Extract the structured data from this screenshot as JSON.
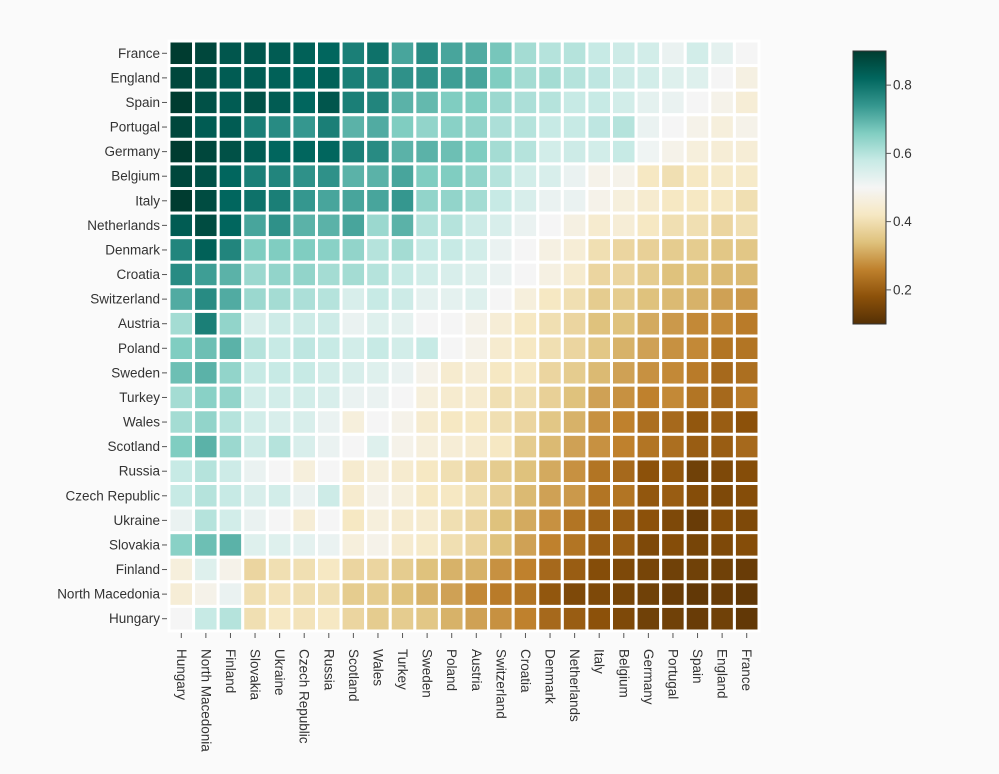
{
  "chart_data": {
    "type": "heatmap",
    "title": "",
    "xlabel": "",
    "ylabel": "",
    "rows": [
      "France",
      "England",
      "Spain",
      "Portugal",
      "Germany",
      "Belgium",
      "Italy",
      "Netherlands",
      "Denmark",
      "Croatia",
      "Switzerland",
      "Austria",
      "Poland",
      "Sweden",
      "Turkey",
      "Wales",
      "Scotland",
      "Russia",
      "Czech Republic",
      "Ukraine",
      "Slovakia",
      "Finland",
      "North Macedonia",
      "Hungary"
    ],
    "columns": [
      "Hungary",
      "North Macedonia",
      "Finland",
      "Slovakia",
      "Ukraine",
      "Czech Republic",
      "Russia",
      "Scotland",
      "Wales",
      "Turkey",
      "Sweden",
      "Poland",
      "Austria",
      "Switzerland",
      "Croatia",
      "Denmark",
      "Netherlands",
      "Italy",
      "Belgium",
      "Germany",
      "Portugal",
      "Spain",
      "England",
      "France"
    ],
    "values": [
      [
        0.9,
        0.88,
        0.85,
        0.85,
        0.84,
        0.83,
        0.82,
        0.78,
        0.8,
        0.72,
        0.76,
        0.72,
        0.71,
        0.67,
        0.62,
        0.6,
        0.6,
        0.58,
        0.57,
        0.56,
        0.52,
        0.56,
        0.53,
        0.5
      ],
      [
        0.88,
        0.86,
        0.84,
        0.84,
        0.83,
        0.82,
        0.83,
        0.78,
        0.77,
        0.75,
        0.75,
        0.73,
        0.72,
        0.66,
        0.62,
        0.62,
        0.6,
        0.59,
        0.57,
        0.56,
        0.54,
        0.54,
        0.5,
        0.47
      ],
      [
        0.9,
        0.86,
        0.84,
        0.86,
        0.84,
        0.82,
        0.85,
        0.78,
        0.77,
        0.7,
        0.69,
        0.66,
        0.66,
        0.63,
        0.61,
        0.6,
        0.58,
        0.58,
        0.56,
        0.53,
        0.52,
        0.5,
        0.48,
        0.45
      ],
      [
        0.88,
        0.84,
        0.84,
        0.78,
        0.76,
        0.74,
        0.78,
        0.7,
        0.71,
        0.66,
        0.64,
        0.65,
        0.64,
        0.61,
        0.6,
        0.58,
        0.58,
        0.59,
        0.6,
        0.52,
        0.5,
        0.48,
        0.46,
        0.48
      ],
      [
        0.91,
        0.88,
        0.86,
        0.84,
        0.82,
        0.82,
        0.82,
        0.78,
        0.76,
        0.7,
        0.7,
        0.68,
        0.66,
        0.62,
        0.6,
        0.56,
        0.57,
        0.56,
        0.58,
        0.51,
        0.48,
        0.46,
        0.45,
        0.45
      ],
      [
        0.88,
        0.86,
        0.82,
        0.78,
        0.77,
        0.75,
        0.75,
        0.7,
        0.7,
        0.72,
        0.66,
        0.66,
        0.64,
        0.6,
        0.56,
        0.55,
        0.52,
        0.48,
        0.48,
        0.42,
        0.4,
        0.42,
        0.43,
        0.43
      ],
      [
        0.9,
        0.87,
        0.82,
        0.8,
        0.78,
        0.74,
        0.72,
        0.72,
        0.72,
        0.74,
        0.64,
        0.64,
        0.62,
        0.58,
        0.55,
        0.52,
        0.52,
        0.48,
        0.46,
        0.44,
        0.42,
        0.42,
        0.42,
        0.4
      ],
      [
        0.84,
        0.87,
        0.82,
        0.72,
        0.75,
        0.7,
        0.7,
        0.72,
        0.63,
        0.7,
        0.6,
        0.6,
        0.57,
        0.55,
        0.52,
        0.5,
        0.47,
        0.44,
        0.45,
        0.42,
        0.4,
        0.4,
        0.38,
        0.4
      ],
      [
        0.77,
        0.83,
        0.77,
        0.66,
        0.66,
        0.66,
        0.65,
        0.64,
        0.6,
        0.62,
        0.58,
        0.58,
        0.56,
        0.52,
        0.5,
        0.47,
        0.45,
        0.4,
        0.38,
        0.37,
        0.36,
        0.36,
        0.35,
        0.35
      ],
      [
        0.76,
        0.73,
        0.7,
        0.63,
        0.64,
        0.64,
        0.62,
        0.62,
        0.6,
        0.58,
        0.56,
        0.55,
        0.54,
        0.52,
        0.5,
        0.47,
        0.44,
        0.38,
        0.38,
        0.36,
        0.34,
        0.34,
        0.33,
        0.33
      ],
      [
        0.71,
        0.76,
        0.71,
        0.63,
        0.62,
        0.61,
        0.6,
        0.55,
        0.58,
        0.57,
        0.53,
        0.53,
        0.54,
        0.5,
        0.46,
        0.42,
        0.4,
        0.36,
        0.36,
        0.34,
        0.33,
        0.32,
        0.3,
        0.29
      ],
      [
        0.62,
        0.78,
        0.64,
        0.55,
        0.57,
        0.57,
        0.57,
        0.52,
        0.54,
        0.53,
        0.5,
        0.5,
        0.48,
        0.45,
        0.42,
        0.4,
        0.38,
        0.34,
        0.34,
        0.31,
        0.29,
        0.27,
        0.27,
        0.25
      ],
      [
        0.66,
        0.68,
        0.7,
        0.6,
        0.58,
        0.59,
        0.58,
        0.56,
        0.58,
        0.56,
        0.58,
        0.5,
        0.48,
        0.44,
        0.42,
        0.4,
        0.38,
        0.35,
        0.32,
        0.3,
        0.28,
        0.27,
        0.24,
        0.24
      ],
      [
        0.68,
        0.7,
        0.64,
        0.58,
        0.58,
        0.58,
        0.56,
        0.55,
        0.54,
        0.52,
        0.48,
        0.44,
        0.45,
        0.42,
        0.42,
        0.38,
        0.36,
        0.33,
        0.3,
        0.28,
        0.27,
        0.25,
        0.22,
        0.23
      ],
      [
        0.62,
        0.65,
        0.64,
        0.56,
        0.56,
        0.56,
        0.55,
        0.52,
        0.52,
        0.5,
        0.46,
        0.44,
        0.44,
        0.4,
        0.4,
        0.37,
        0.34,
        0.3,
        0.28,
        0.26,
        0.27,
        0.24,
        0.22,
        0.25
      ],
      [
        0.62,
        0.64,
        0.6,
        0.56,
        0.55,
        0.55,
        0.52,
        0.46,
        0.5,
        0.48,
        0.44,
        0.42,
        0.42,
        0.4,
        0.38,
        0.35,
        0.32,
        0.28,
        0.26,
        0.23,
        0.22,
        0.19,
        0.2,
        0.18
      ],
      [
        0.66,
        0.7,
        0.63,
        0.57,
        0.6,
        0.55,
        0.52,
        0.5,
        0.54,
        0.48,
        0.46,
        0.45,
        0.44,
        0.42,
        0.36,
        0.33,
        0.3,
        0.28,
        0.26,
        0.24,
        0.23,
        0.2,
        0.2,
        0.22
      ],
      [
        0.58,
        0.6,
        0.57,
        0.52,
        0.5,
        0.46,
        0.5,
        0.44,
        0.46,
        0.44,
        0.42,
        0.4,
        0.38,
        0.36,
        0.34,
        0.31,
        0.28,
        0.24,
        0.22,
        0.18,
        0.19,
        0.14,
        0.16,
        0.17
      ],
      [
        0.58,
        0.6,
        0.58,
        0.55,
        0.56,
        0.52,
        0.57,
        0.44,
        0.48,
        0.46,
        0.42,
        0.42,
        0.4,
        0.37,
        0.33,
        0.3,
        0.29,
        0.24,
        0.24,
        0.19,
        0.2,
        0.17,
        0.16,
        0.17
      ],
      [
        0.52,
        0.6,
        0.56,
        0.52,
        0.5,
        0.45,
        0.5,
        0.42,
        0.46,
        0.44,
        0.44,
        0.4,
        0.38,
        0.34,
        0.31,
        0.28,
        0.24,
        0.21,
        0.2,
        0.18,
        0.16,
        0.13,
        0.17,
        0.16
      ],
      [
        0.65,
        0.68,
        0.7,
        0.54,
        0.54,
        0.53,
        0.52,
        0.46,
        0.48,
        0.44,
        0.43,
        0.4,
        0.38,
        0.34,
        0.3,
        0.26,
        0.24,
        0.2,
        0.2,
        0.16,
        0.17,
        0.15,
        0.16,
        0.17
      ],
      [
        0.46,
        0.54,
        0.48,
        0.38,
        0.4,
        0.4,
        0.42,
        0.38,
        0.38,
        0.36,
        0.34,
        0.32,
        0.32,
        0.28,
        0.26,
        0.22,
        0.2,
        0.17,
        0.16,
        0.15,
        0.14,
        0.14,
        0.14,
        0.13
      ],
      [
        0.45,
        0.48,
        0.52,
        0.4,
        0.41,
        0.4,
        0.4,
        0.36,
        0.36,
        0.34,
        0.32,
        0.3,
        0.27,
        0.25,
        0.24,
        0.19,
        0.16,
        0.16,
        0.15,
        0.14,
        0.13,
        0.12,
        0.13,
        0.12
      ],
      [
        0.5,
        0.58,
        0.6,
        0.4,
        0.42,
        0.41,
        0.42,
        0.38,
        0.36,
        0.36,
        0.35,
        0.32,
        0.3,
        0.28,
        0.26,
        0.22,
        0.2,
        0.18,
        0.16,
        0.14,
        0.14,
        0.13,
        0.14,
        0.12
      ]
    ],
    "colorbar": {
      "min": 0.1,
      "max": 0.9,
      "ticks": [
        "0.2",
        "0.4",
        "0.6",
        "0.8"
      ],
      "colorscale": [
        "#543005",
        "#8c510a",
        "#bf812d",
        "#dfc27d",
        "#f6e8c3",
        "#f5f5f5",
        "#c7eae5",
        "#80cdc1",
        "#35978f",
        "#01665e",
        "#003c30"
      ]
    },
    "legend_position": "right",
    "grid": false
  }
}
